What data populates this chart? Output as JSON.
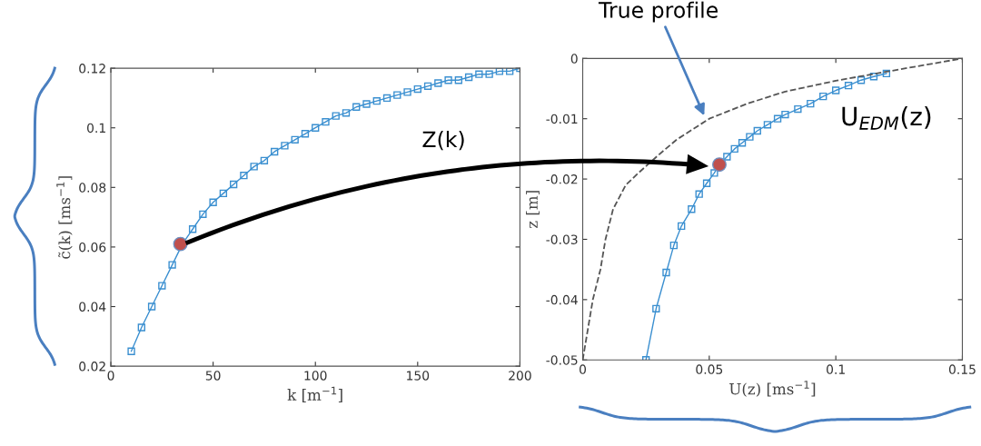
{
  "chart_data": [
    {
      "type": "line",
      "xlabel": "k [m$^{−1}$]",
      "ylabel": "c̃(k) [ms$^{−1}$]",
      "xlim": [
        0,
        200
      ],
      "xticks": [
        0,
        50,
        100,
        150,
        200
      ],
      "ylim": [
        0.02,
        0.12
      ],
      "yticks": [
        0.02,
        0.04,
        0.06,
        0.08,
        0.1,
        0.12
      ],
      "grid": false,
      "legend": false,
      "annotations": [
        "Z(k)"
      ],
      "series": [
        {
          "color": "#3a8fd0",
          "marker": "square",
          "line_style": "solid",
          "x": [
            10,
            15,
            20,
            25,
            30,
            35,
            40,
            45,
            50,
            55,
            60,
            65,
            70,
            75,
            80,
            85,
            90,
            95,
            100,
            105,
            110,
            115,
            120,
            125,
            130,
            135,
            140,
            145,
            150,
            155,
            160,
            165,
            170,
            175,
            180,
            185,
            190,
            195,
            200
          ],
          "values": [
            0.025,
            0.033,
            0.04,
            0.047,
            0.054,
            0.061,
            0.066,
            0.071,
            0.075,
            0.078,
            0.081,
            0.084,
            0.087,
            0.089,
            0.092,
            0.094,
            0.096,
            0.098,
            0.1,
            0.102,
            0.104,
            0.105,
            0.107,
            0.108,
            0.109,
            0.11,
            0.111,
            0.112,
            0.113,
            0.114,
            0.115,
            0.116,
            0.116,
            0.117,
            0.118,
            0.118,
            0.119,
            0.119,
            0.12
          ]
        },
        {
          "type": "scatter",
          "color": "#c0504d",
          "marker": "circle",
          "x": [
            34
          ],
          "values": [
            0.061
          ]
        }
      ]
    },
    {
      "type": "line",
      "xlabel": "U(z) [ms$^{−1}$]",
      "ylabel": "z [m]",
      "xlim": [
        0,
        0.15
      ],
      "xticks": [
        0,
        0.05,
        0.1,
        0.15
      ],
      "ylim": [
        -0.05,
        0
      ],
      "yticks": [
        -0.05,
        -0.04,
        -0.03,
        -0.02,
        -0.01,
        0
      ],
      "grid": false,
      "legend": false,
      "annotations": [
        {
          "text": "True profile",
          "x": 0.048,
          "y": -0.0095
        }
      ],
      "series": [
        {
          "name": "U$_{EDM}$(z)",
          "color": "#3a8fd0",
          "marker": "square",
          "line_style": "solid",
          "x": [
            0.025,
            0.029,
            0.033,
            0.036,
            0.039,
            0.043,
            0.046,
            0.049,
            0.052,
            0.054,
            0.057,
            0.06,
            0.063,
            0.066,
            0.069,
            0.073,
            0.077,
            0.08,
            0.085,
            0.09,
            0.095,
            0.1,
            0.105,
            0.11,
            0.115,
            0.12
          ],
          "values": [
            -0.05,
            -0.0415,
            -0.0355,
            -0.031,
            -0.0278,
            -0.025,
            -0.0225,
            -0.0207,
            -0.019,
            -0.0176,
            -0.0163,
            -0.015,
            -0.014,
            -0.013,
            -0.012,
            -0.011,
            -0.01,
            -0.0093,
            -0.0084,
            -0.0075,
            -0.0063,
            -0.0053,
            -0.0045,
            -0.0036,
            -0.003,
            -0.0025
          ]
        },
        {
          "color": "#555555",
          "marker": "none",
          "line_style": "dashed",
          "x": [
            0,
            0.002,
            0.004,
            0.007,
            0.009,
            0.012,
            0.017,
            0.022,
            0.03,
            0.037,
            0.05,
            0.065,
            0.08,
            0.1,
            0.12,
            0.15
          ],
          "values": [
            -0.05,
            -0.045,
            -0.04,
            -0.035,
            -0.03,
            -0.025,
            -0.021,
            -0.019,
            -0.016,
            -0.0135,
            -0.01,
            -0.0075,
            -0.0055,
            -0.0037,
            -0.0022,
            0
          ]
        },
        {
          "type": "scatter",
          "color": "#c0504d",
          "marker": "circle",
          "x": [
            0.054
          ],
          "values": [
            -0.0176
          ]
        }
      ]
    }
  ]
}
